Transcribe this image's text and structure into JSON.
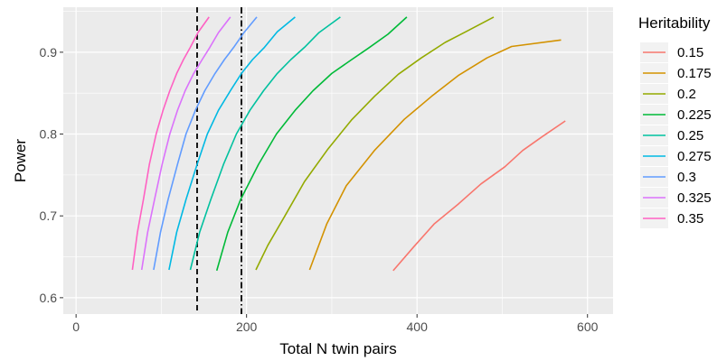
{
  "chart_data": {
    "type": "line",
    "xlabel": "Total N twin pairs",
    "ylabel": "Power",
    "xlim": [
      -15,
      630
    ],
    "ylim": [
      0.58,
      0.955
    ],
    "x_ticks": [
      0,
      200,
      400,
      600
    ],
    "x_tick_labels": [
      "0",
      "200",
      "400",
      "600"
    ],
    "y_ticks": [
      0.6,
      0.7,
      0.8,
      0.9
    ],
    "y_tick_labels": [
      "0.6",
      "0.7",
      "0.8",
      "0.9"
    ],
    "grid": true,
    "legend_title": "Heritability",
    "legend_position": "right",
    "vlines": [
      {
        "x": 142,
        "style": "dashed"
      },
      {
        "x": 194,
        "style": "dashdot"
      }
    ],
    "series": [
      {
        "name": "0.15",
        "color": "#F8766D",
        "points": [
          [
            372,
            0.633
          ],
          [
            396,
            0.662
          ],
          [
            420,
            0.69
          ],
          [
            448,
            0.714
          ],
          [
            475,
            0.739
          ],
          [
            503,
            0.76
          ],
          [
            524,
            0.78
          ],
          [
            547,
            0.797
          ],
          [
            574,
            0.816
          ]
        ]
      },
      {
        "name": "0.175",
        "color": "#D39200",
        "points": [
          [
            274,
            0.634
          ],
          [
            294,
            0.69
          ],
          [
            317,
            0.737
          ],
          [
            350,
            0.78
          ],
          [
            385,
            0.818
          ],
          [
            417,
            0.846
          ],
          [
            449,
            0.872
          ],
          [
            482,
            0.893
          ],
          [
            511,
            0.907
          ],
          [
            569,
            0.915
          ]
        ]
      },
      {
        "name": "0.2",
        "color": "#93AA00",
        "points": [
          [
            211,
            0.634
          ],
          [
            225,
            0.664
          ],
          [
            245,
            0.7
          ],
          [
            268,
            0.742
          ],
          [
            295,
            0.781
          ],
          [
            323,
            0.817
          ],
          [
            350,
            0.846
          ],
          [
            378,
            0.873
          ],
          [
            405,
            0.893
          ],
          [
            433,
            0.912
          ],
          [
            459,
            0.926
          ],
          [
            490,
            0.943
          ]
        ]
      },
      {
        "name": "0.225",
        "color": "#00BA38",
        "points": [
          [
            165,
            0.633
          ],
          [
            178,
            0.68
          ],
          [
            193,
            0.72
          ],
          [
            214,
            0.763
          ],
          [
            235,
            0.8
          ],
          [
            257,
            0.829
          ],
          [
            278,
            0.853
          ],
          [
            300,
            0.874
          ],
          [
            322,
            0.89
          ],
          [
            343,
            0.905
          ],
          [
            366,
            0.922
          ],
          [
            388,
            0.943
          ]
        ]
      },
      {
        "name": "0.25",
        "color": "#00C19F",
        "points": [
          [
            134,
            0.634
          ],
          [
            145,
            0.68
          ],
          [
            158,
            0.72
          ],
          [
            173,
            0.763
          ],
          [
            188,
            0.8
          ],
          [
            204,
            0.829
          ],
          [
            220,
            0.853
          ],
          [
            236,
            0.874
          ],
          [
            252,
            0.891
          ],
          [
            268,
            0.906
          ],
          [
            285,
            0.924
          ],
          [
            310,
            0.943
          ]
        ]
      },
      {
        "name": "0.275",
        "color": "#00B9E3",
        "points": [
          [
            109,
            0.634
          ],
          [
            118,
            0.68
          ],
          [
            129,
            0.72
          ],
          [
            142,
            0.763
          ],
          [
            154,
            0.8
          ],
          [
            167,
            0.829
          ],
          [
            181,
            0.853
          ],
          [
            194,
            0.874
          ],
          [
            207,
            0.891
          ],
          [
            221,
            0.906
          ],
          [
            236,
            0.925
          ],
          [
            257,
            0.943
          ]
        ]
      },
      {
        "name": "0.3",
        "color": "#619CFF",
        "points": [
          [
            91,
            0.634
          ],
          [
            99,
            0.68
          ],
          [
            108,
            0.72
          ],
          [
            119,
            0.763
          ],
          [
            129,
            0.8
          ],
          [
            140,
            0.829
          ],
          [
            151,
            0.853
          ],
          [
            163,
            0.874
          ],
          [
            174,
            0.891
          ],
          [
            185,
            0.906
          ],
          [
            197,
            0.924
          ],
          [
            212,
            0.943
          ]
        ]
      },
      {
        "name": "0.325",
        "color": "#DB72FB",
        "points": [
          [
            77,
            0.634
          ],
          [
            84,
            0.68
          ],
          [
            92,
            0.72
          ],
          [
            101,
            0.763
          ],
          [
            110,
            0.8
          ],
          [
            119,
            0.829
          ],
          [
            128,
            0.853
          ],
          [
            138,
            0.874
          ],
          [
            148,
            0.891
          ],
          [
            157,
            0.906
          ],
          [
            167,
            0.924
          ],
          [
            181,
            0.943
          ]
        ]
      },
      {
        "name": "0.35",
        "color": "#FF61C3",
        "points": [
          [
            66,
            0.634
          ],
          [
            72,
            0.68
          ],
          [
            79,
            0.72
          ],
          [
            86,
            0.763
          ],
          [
            94,
            0.8
          ],
          [
            102,
            0.829
          ],
          [
            110,
            0.853
          ],
          [
            118,
            0.874
          ],
          [
            126,
            0.891
          ],
          [
            134,
            0.906
          ],
          [
            143,
            0.924
          ],
          [
            156,
            0.943
          ]
        ]
      }
    ]
  }
}
